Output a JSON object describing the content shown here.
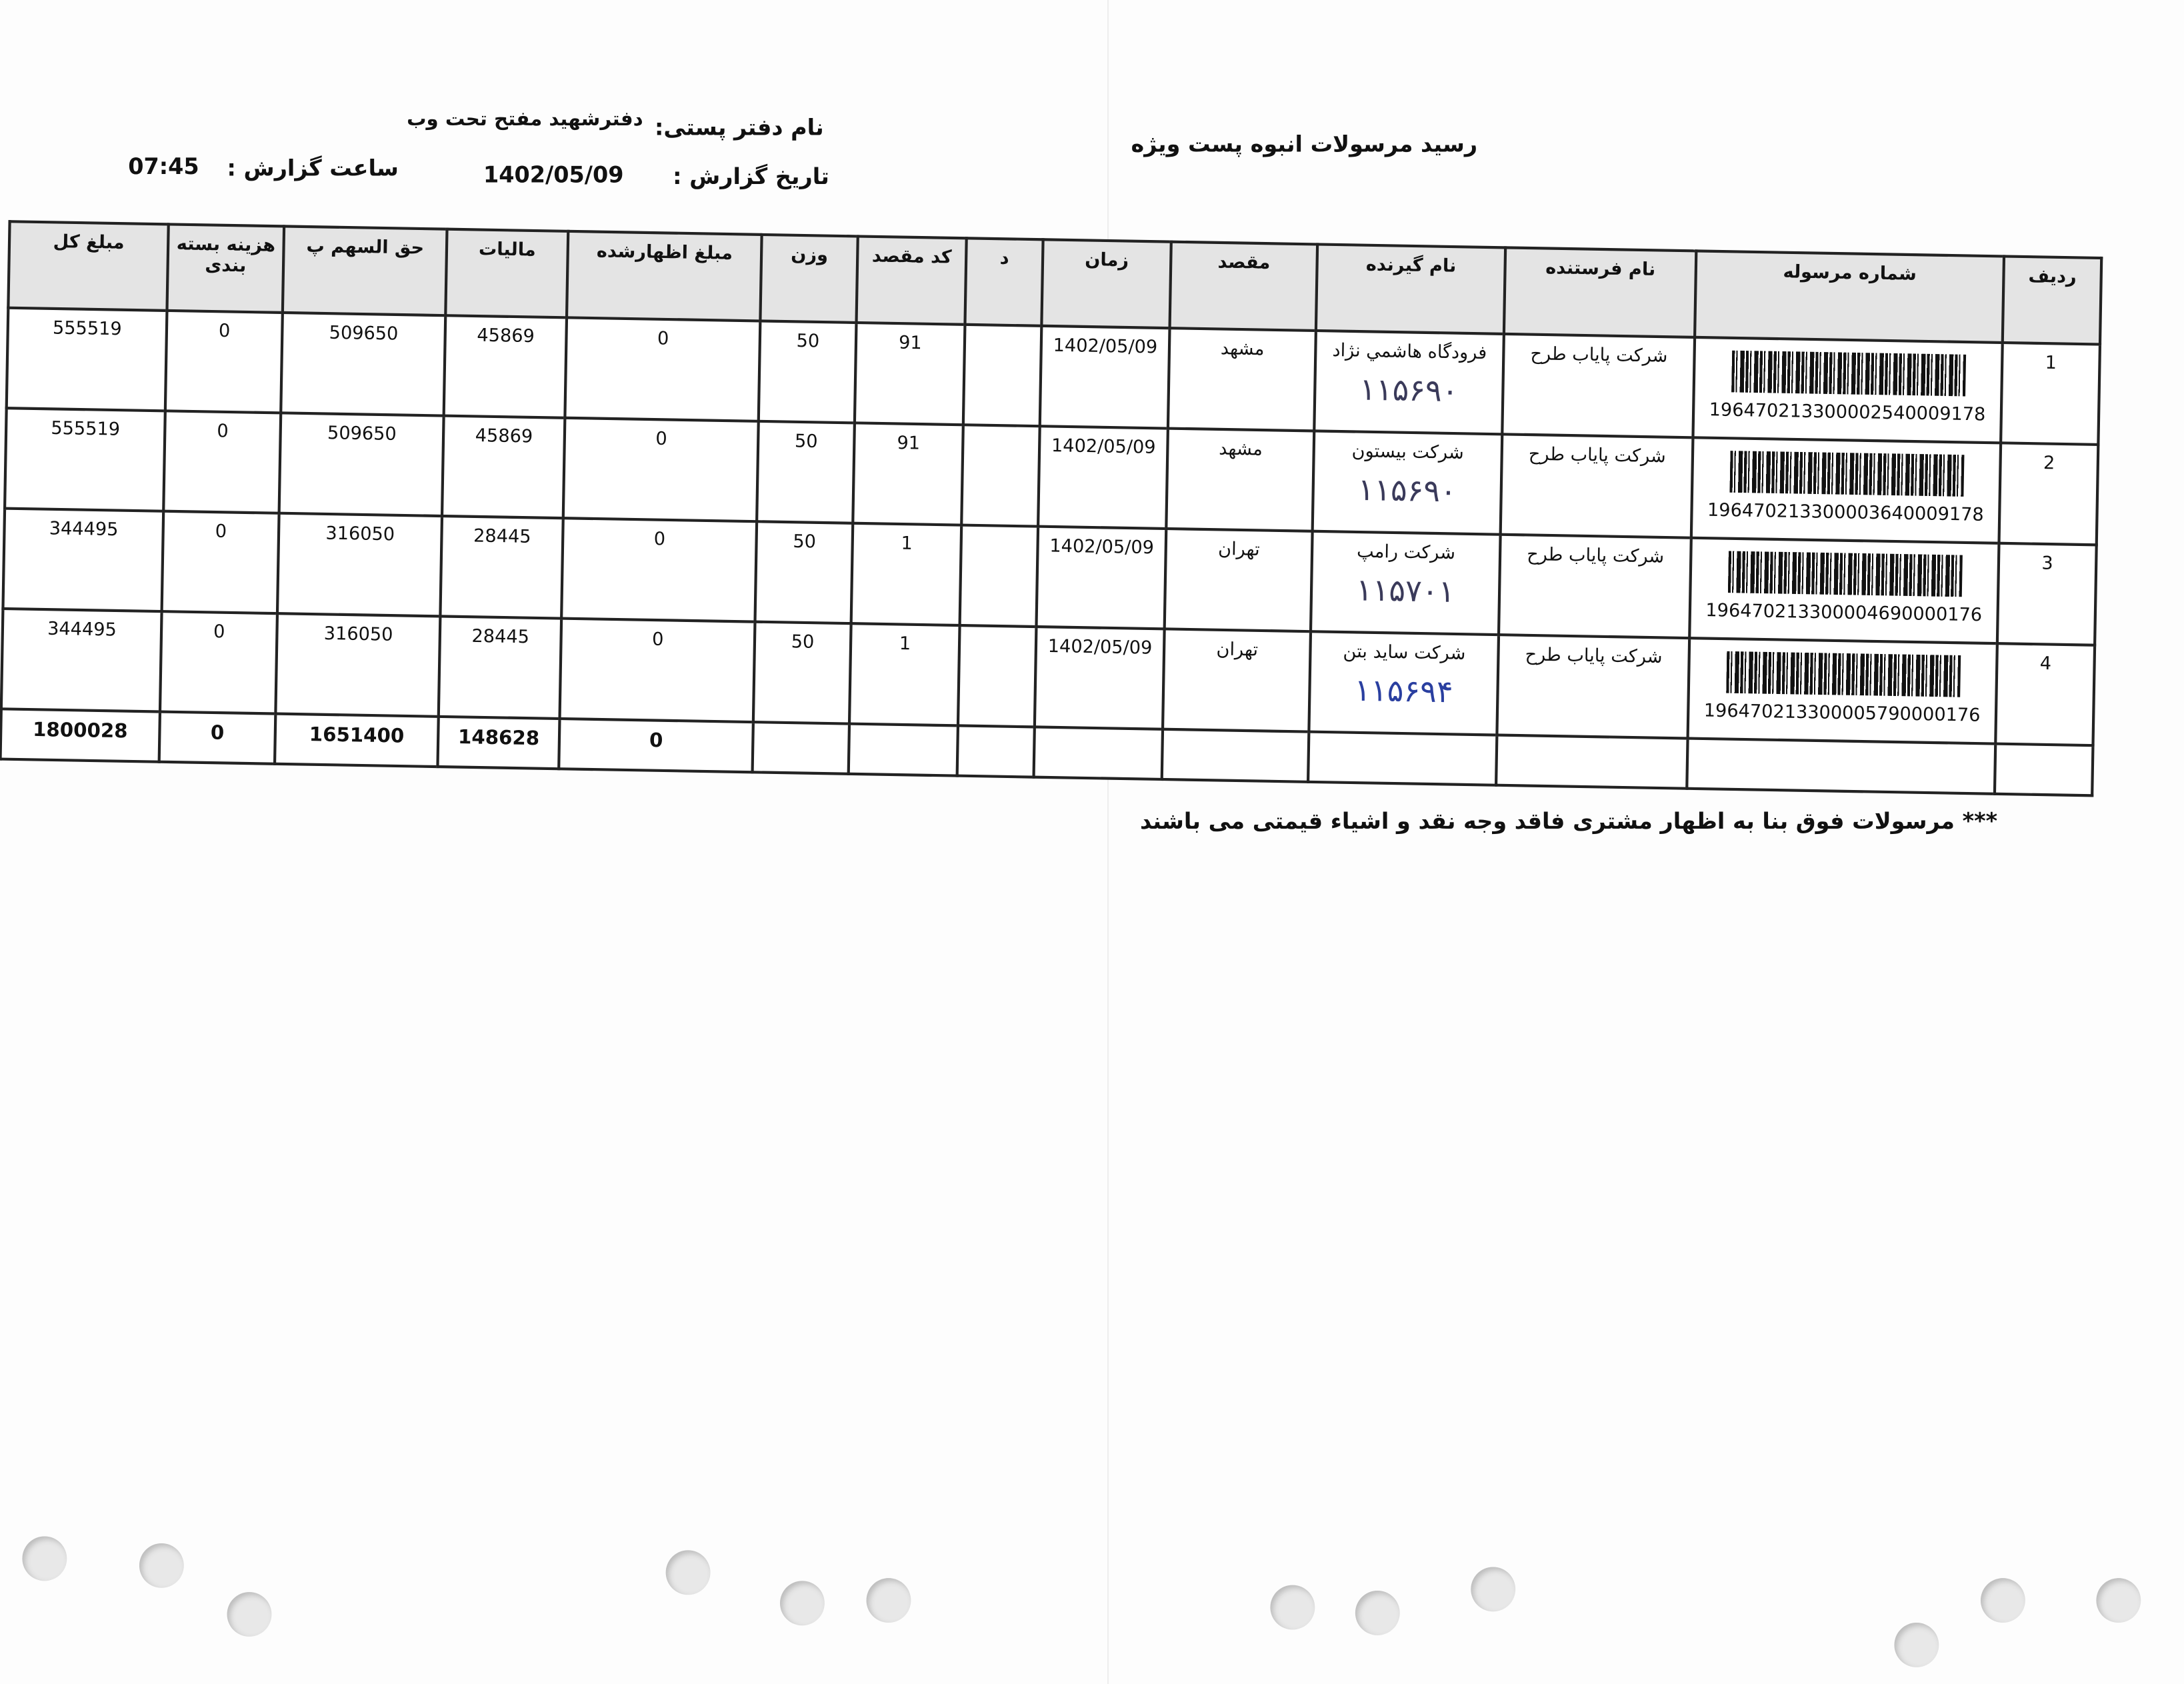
{
  "header": {
    "title": "رسید مرسولات انبوه پست ویژه",
    "office_label": "نام دفتر پستی:",
    "office_value": "دفترشهید مفتح تحت وب",
    "date_label": "تاریخ گزارش :",
    "date_value": "1402/05/09",
    "time_label": "ساعت گزارش :",
    "time_value": "07:45"
  },
  "table": {
    "columns": [
      "ردیف",
      "شماره مرسوله",
      "نام فرستنده",
      "نام گیرنده",
      "مقصد",
      "زمان",
      "د",
      "کد مقصد",
      "وزن",
      "مبلغ اظهارشده",
      "مالیات",
      "حق السهم پ",
      "هزینه بسته بندی",
      "مبلغ کل"
    ],
    "rows": [
      {
        "row": "1",
        "tracking": "196470213300002540009178",
        "sender": "شرکت پایاب طرح",
        "receiver": "فرودگاه هاشمي نژاد",
        "handwritten": "۱۱۵۶۹۰",
        "destination": "مشهد",
        "time": "1402/05/09",
        "d": "",
        "dest_code": "91",
        "weight": "50",
        "declared": "0",
        "tax": "45869",
        "share": "509650",
        "packing": "0",
        "total": "555519"
      },
      {
        "row": "2",
        "tracking": "196470213300003640009178",
        "sender": "شرکت پایاب طرح",
        "receiver": "شرکت بیستون",
        "handwritten": "۱۱۵۶۹۰",
        "destination": "مشهد",
        "time": "1402/05/09",
        "d": "",
        "dest_code": "91",
        "weight": "50",
        "declared": "0",
        "tax": "45869",
        "share": "509650",
        "packing": "0",
        "total": "555519"
      },
      {
        "row": "3",
        "tracking": "196470213300004690000176",
        "sender": "شرکت پایاب طرح",
        "receiver": "شرکت رامپ",
        "handwritten": "۱۱۵۷۰۱",
        "destination": "تهران",
        "time": "1402/05/09",
        "d": "",
        "dest_code": "1",
        "weight": "50",
        "declared": "0",
        "tax": "28445",
        "share": "316050",
        "packing": "0",
        "total": "344495"
      },
      {
        "row": "4",
        "tracking": "196470213300005790000176",
        "sender": "شرکت پایاب طرح",
        "receiver": "شرکت ساید بتن",
        "handwritten": "۱۱۵۶۹۴",
        "destination": "تهران",
        "time": "1402/05/09",
        "d": "",
        "dest_code": "1",
        "weight": "50",
        "declared": "0",
        "tax": "28445",
        "share": "316050",
        "packing": "0",
        "total": "344495"
      }
    ],
    "totals": {
      "declared": "0",
      "tax": "148628",
      "share": "1651400",
      "packing": "0",
      "total": "1800028"
    }
  },
  "footer_note": "*** مرسولات فوق  بنا به اظهار مشتری فاقد وجه نقد و اشیاء قیمتی می باشند",
  "colors": {
    "header_bg": "#e4e4e4",
    "handwriting_blue": "#2a3fa0"
  }
}
